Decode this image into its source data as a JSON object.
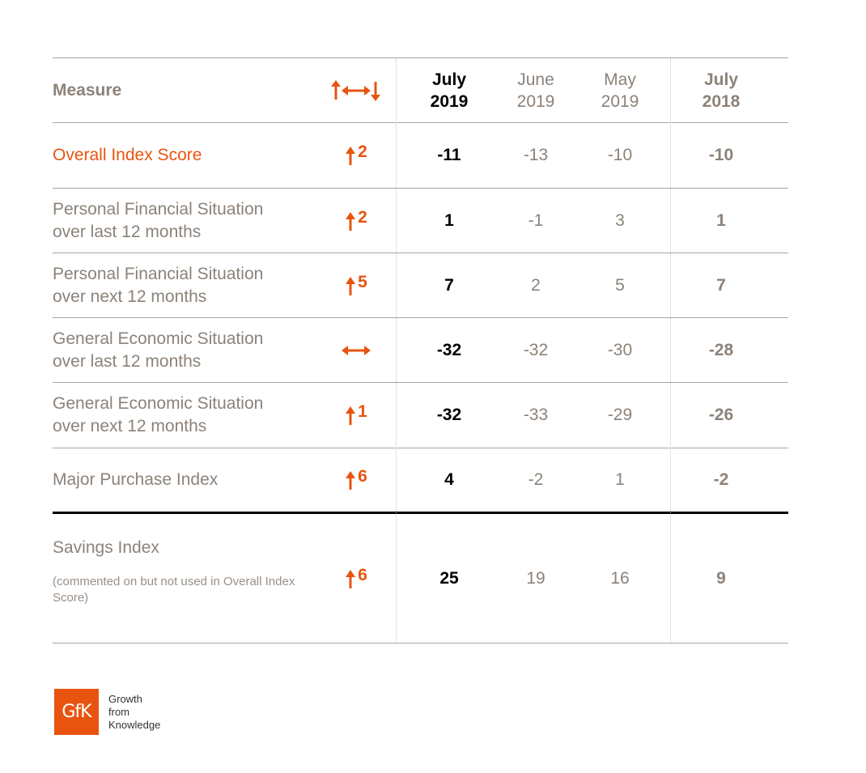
{
  "chart_data": {
    "type": "table",
    "headers": {
      "measure": "Measure",
      "columns": [
        {
          "month": "July",
          "year": "2019",
          "style": "strong"
        },
        {
          "month": "June",
          "year": "2019",
          "style": "weak"
        },
        {
          "month": "May",
          "year": "2019",
          "style": "weak"
        },
        {
          "month": "July",
          "year": "2018",
          "style": "bold-grey"
        }
      ]
    },
    "rows": [
      {
        "measure": "Overall Index Score",
        "change": "2",
        "direction": "up",
        "values": [
          "-11",
          "-13",
          "-10",
          "-10"
        ]
      },
      {
        "measure": "Personal Financial Situation over last 12 months",
        "change": "2",
        "direction": "up",
        "values": [
          "1",
          "-1",
          "3",
          "1"
        ]
      },
      {
        "measure": "Personal Financial Situation over next 12 months",
        "change": "5",
        "direction": "up",
        "values": [
          "7",
          "2",
          "5",
          "7"
        ]
      },
      {
        "measure": "General Economic Situation over last 12 months",
        "change": "",
        "direction": "flat",
        "values": [
          "-32",
          "-32",
          "-30",
          "-28"
        ]
      },
      {
        "measure": "General Economic Situation over next 12 months",
        "change": "1",
        "direction": "up",
        "values": [
          "-32",
          "-33",
          "-29",
          "-26"
        ]
      },
      {
        "measure": "Major Purchase Index",
        "change": "6",
        "direction": "up",
        "values": [
          "4",
          "-2",
          "1",
          "-2"
        ]
      },
      {
        "measure": "Savings Index",
        "note": "(commented on but not used in Overall Index Score)",
        "change": "6",
        "direction": "up",
        "values": [
          "25",
          "19",
          "16",
          "9"
        ]
      }
    ]
  },
  "row_lines": [
    [
      "Overall Index Score"
    ],
    [
      "Personal Financial Situation",
      "over last 12 months"
    ],
    [
      "Personal Financial Situation",
      "over next 12 months"
    ],
    [
      "General Economic Situation",
      "over last 12 months"
    ],
    [
      "General Economic Situation",
      "over next 12 months"
    ],
    [
      "Major Purchase Index"
    ],
    [
      "Savings Index"
    ]
  ],
  "colors": {
    "accent": "#e8540f",
    "grey_text": "#8c8279",
    "strong_text": "#000000"
  },
  "logo": {
    "text": "GfK",
    "tagline": [
      "Growth",
      "from",
      "Knowledge"
    ]
  }
}
